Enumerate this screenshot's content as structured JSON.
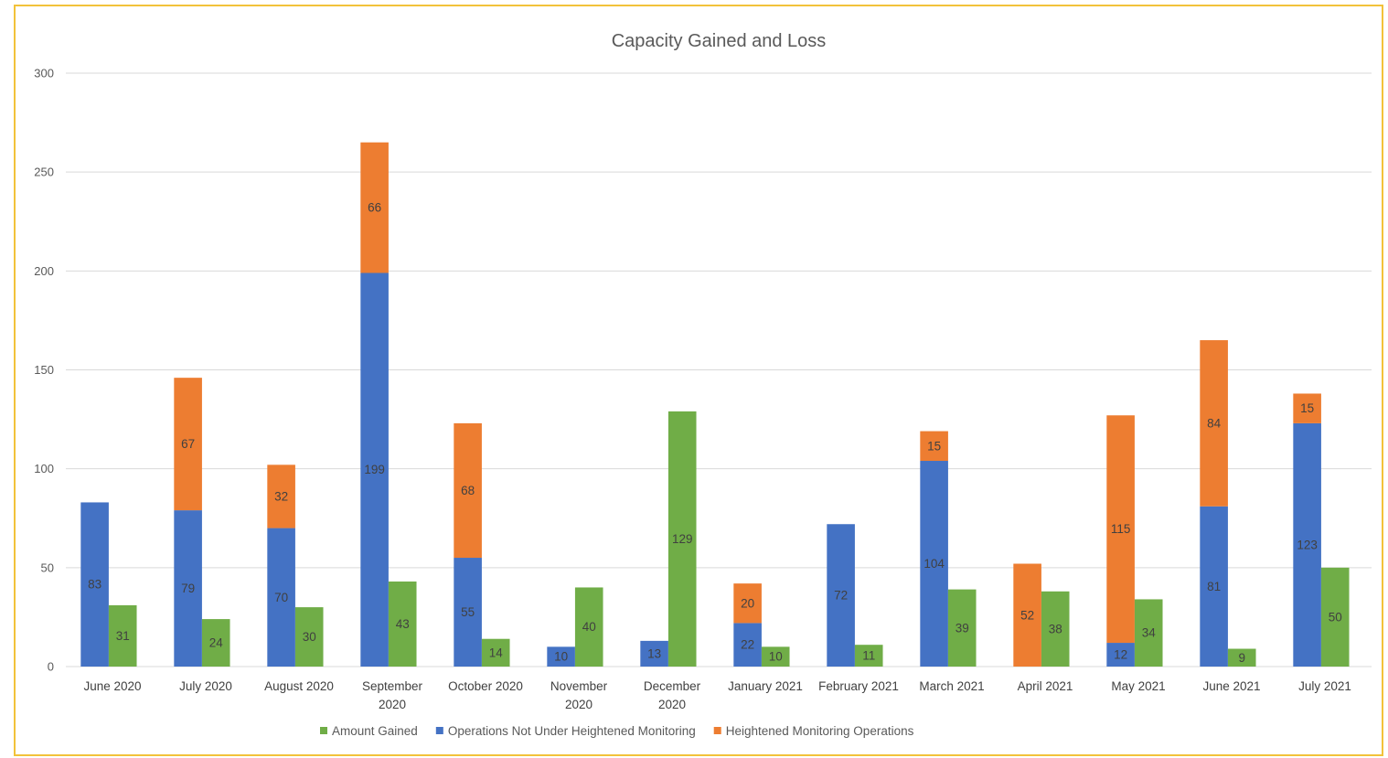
{
  "chart_data": {
    "type": "bar",
    "subtype": "grouped stacked column",
    "title": "Capacity Gained and Loss",
    "categories": [
      "June 2020",
      "July 2020",
      "August 2020",
      "September 2020",
      "October 2020",
      "November 2020",
      "December 2020",
      "January 2021",
      "February  2021",
      "March 2021",
      "April 2021",
      "May 2021",
      "June 2021",
      "July 2021"
    ],
    "category_lines": [
      [
        "June 2020"
      ],
      [
        "July 2020"
      ],
      [
        "August 2020"
      ],
      [
        "September",
        "2020"
      ],
      [
        "October 2020"
      ],
      [
        "November",
        "2020"
      ],
      [
        "December",
        "2020"
      ],
      [
        "January 2021"
      ],
      [
        "February  2021"
      ],
      [
        "March 2021"
      ],
      [
        "April 2021"
      ],
      [
        "May 2021"
      ],
      [
        "June 2021"
      ],
      [
        "July 2021"
      ]
    ],
    "ylim": [
      0,
      300
    ],
    "yticks": [
      0,
      50,
      100,
      150,
      200,
      250,
      300
    ],
    "grid": true,
    "legend_position": "bottom",
    "series": [
      {
        "name": "Amount Gained",
        "color": "#70ad47",
        "stack": "gained",
        "values": [
          31,
          24,
          30,
          43,
          14,
          40,
          129,
          10,
          11,
          39,
          38,
          34,
          9,
          50
        ]
      },
      {
        "name": "Operations Not Under Heightened Monitoring",
        "color": "#4472c4",
        "stack": "loss",
        "values": [
          83,
          79,
          70,
          199,
          55,
          10,
          13,
          22,
          72,
          104,
          0,
          12,
          81,
          123
        ]
      },
      {
        "name": "Heightened Monitoring Operations",
        "color": "#ed7d31",
        "stack": "loss",
        "values": [
          0,
          67,
          32,
          66,
          68,
          0,
          0,
          20,
          0,
          15,
          52,
          115,
          84,
          15
        ]
      }
    ],
    "legend_order": [
      "Amount Gained",
      "Operations Not Under Heightened Monitoring",
      "Heightened Monitoring Operations"
    ]
  },
  "colors": {
    "frame_border": "#f2c23a",
    "gridline": "#d9d9d9",
    "axis_text": "#595959"
  }
}
